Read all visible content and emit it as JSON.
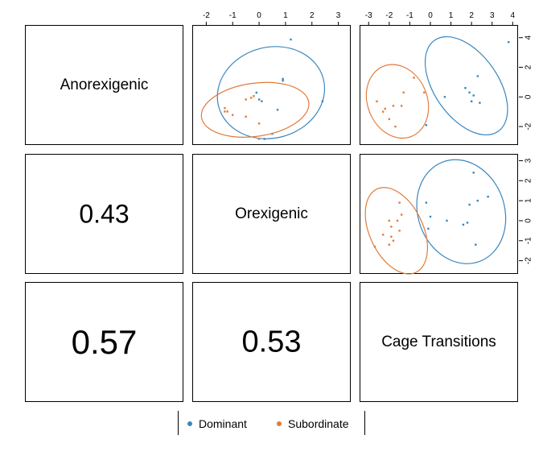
{
  "colors": {
    "dominant": "#3a87c0",
    "subordinate": "#e07b39"
  },
  "variables": [
    "Anorexigenic",
    "Orexigenic",
    "Cage Transitions"
  ],
  "correlations": [
    {
      "label": "0.43",
      "font_px": 32
    },
    {
      "label": "0.57",
      "font_px": 42
    },
    {
      "label": "0.53",
      "font_px": 38
    }
  ],
  "legend": {
    "items": [
      "Dominant",
      "Subordinate"
    ]
  },
  "chart_data": [
    {
      "type": "scatter",
      "panel": "Orexigenic (x) vs Anorexigenic (y)",
      "xlabel": "",
      "ylabel": "",
      "xlim": [
        -2.5,
        3.5
      ],
      "ylim": [
        -2.5,
        4.5
      ],
      "xticks": [
        -2,
        -1,
        0,
        1,
        2,
        3
      ],
      "xtick_side": "top",
      "ytick_side": "none",
      "series": [
        {
          "name": "Dominant",
          "points": [
            [
              1.2,
              3.7
            ],
            [
              0.9,
              1.4
            ],
            [
              0.9,
              1.3
            ],
            [
              -0.1,
              0.6
            ],
            [
              0.0,
              0.2
            ],
            [
              0.1,
              0.1
            ],
            [
              0.7,
              -0.4
            ],
            [
              2.4,
              0.1
            ],
            [
              0.5,
              -1.8
            ],
            [
              0.2,
              -2.1
            ]
          ],
          "ellipse": {
            "cx": 0.45,
            "cy": 0.6,
            "rx": 2.05,
            "ry": 2.65,
            "angle": 15
          }
        },
        {
          "name": "Subordinate",
          "points": [
            [
              -1.3,
              -0.3
            ],
            [
              -1.2,
              -0.5
            ],
            [
              -1.0,
              -0.7
            ],
            [
              -1.3,
              -0.5
            ],
            [
              -0.5,
              0.2
            ],
            [
              -0.2,
              0.4
            ],
            [
              0.0,
              -1.2
            ],
            [
              -0.5,
              -0.8
            ],
            [
              0.0,
              -2.1
            ],
            [
              -0.3,
              0.3
            ]
          ],
          "ellipse": {
            "cx": -0.15,
            "cy": -0.4,
            "rx": 2.05,
            "ry": 1.55,
            "angle": 8
          }
        }
      ]
    },
    {
      "type": "scatter",
      "panel": "Cage Transitions (x) vs Anorexigenic (y)",
      "xlabel": "",
      "ylabel": "",
      "xlim": [
        -3.4,
        4.3
      ],
      "ylim": [
        -3.3,
        4.8
      ],
      "xticks": [
        -3,
        -2,
        -1,
        0,
        1,
        2,
        3,
        4
      ],
      "xtick_side": "top",
      "yticks": [
        -2,
        0,
        2,
        4
      ],
      "ytick_side": "right",
      "series": [
        {
          "name": "Dominant",
          "points": [
            [
              3.8,
              3.7
            ],
            [
              2.3,
              1.4
            ],
            [
              1.7,
              0.6
            ],
            [
              1.9,
              0.3
            ],
            [
              2.1,
              0.1
            ],
            [
              0.7,
              0.0
            ],
            [
              2.0,
              -0.3
            ],
            [
              2.4,
              -0.4
            ],
            [
              -0.2,
              -1.9
            ]
          ],
          "ellipse": {
            "cx": 1.75,
            "cy": 0.75,
            "rx": 1.55,
            "ry": 3.75,
            "angle": 35
          }
        },
        {
          "name": "Subordinate",
          "points": [
            [
              -0.8,
              1.3
            ],
            [
              -0.3,
              0.3
            ],
            [
              -1.3,
              0.3
            ],
            [
              -2.6,
              -0.3
            ],
            [
              -1.8,
              -0.6
            ],
            [
              -2.2,
              -0.8
            ],
            [
              -1.4,
              -0.6
            ],
            [
              -2.3,
              -1.0
            ],
            [
              -1.7,
              -2.0
            ],
            [
              -2.0,
              -1.5
            ]
          ],
          "ellipse": {
            "cx": -1.6,
            "cy": -0.3,
            "rx": 1.45,
            "ry": 2.55,
            "angle": 22
          }
        }
      ]
    },
    {
      "type": "scatter",
      "panel": "Cage Transitions (x) vs Orexigenic (y)",
      "xlabel": "",
      "ylabel": "",
      "xlim": [
        -3.4,
        4.3
      ],
      "ylim": [
        -2.7,
        3.3
      ],
      "yticks": [
        -2,
        -1,
        0,
        1,
        2,
        3
      ],
      "ytick_side": "right",
      "series": [
        {
          "name": "Dominant",
          "points": [
            [
              2.1,
              2.4
            ],
            [
              2.3,
              1.0
            ],
            [
              2.8,
              1.2
            ],
            [
              1.9,
              0.8
            ],
            [
              -0.2,
              0.9
            ],
            [
              0.0,
              0.2
            ],
            [
              0.8,
              0.0
            ],
            [
              1.6,
              -0.2
            ],
            [
              1.8,
              -0.1
            ],
            [
              2.2,
              -1.2
            ],
            [
              -0.1,
              -0.4
            ]
          ],
          "ellipse": {
            "cx": 1.5,
            "cy": 0.45,
            "rx": 2.1,
            "ry": 2.65,
            "angle": 20
          }
        },
        {
          "name": "Subordinate",
          "points": [
            [
              -1.5,
              0.9
            ],
            [
              -1.4,
              0.3
            ],
            [
              -2.0,
              0.0
            ],
            [
              -1.6,
              0.0
            ],
            [
              -1.9,
              -0.3
            ],
            [
              -1.5,
              -0.5
            ],
            [
              -2.3,
              -0.7
            ],
            [
              -1.9,
              -0.8
            ],
            [
              -1.8,
              -1.0
            ],
            [
              -2.7,
              -1.3
            ],
            [
              -2.0,
              -1.2
            ]
          ],
          "ellipse": {
            "cx": -1.65,
            "cy": -0.5,
            "rx": 1.3,
            "ry": 2.3,
            "angle": 25
          }
        }
      ]
    }
  ]
}
